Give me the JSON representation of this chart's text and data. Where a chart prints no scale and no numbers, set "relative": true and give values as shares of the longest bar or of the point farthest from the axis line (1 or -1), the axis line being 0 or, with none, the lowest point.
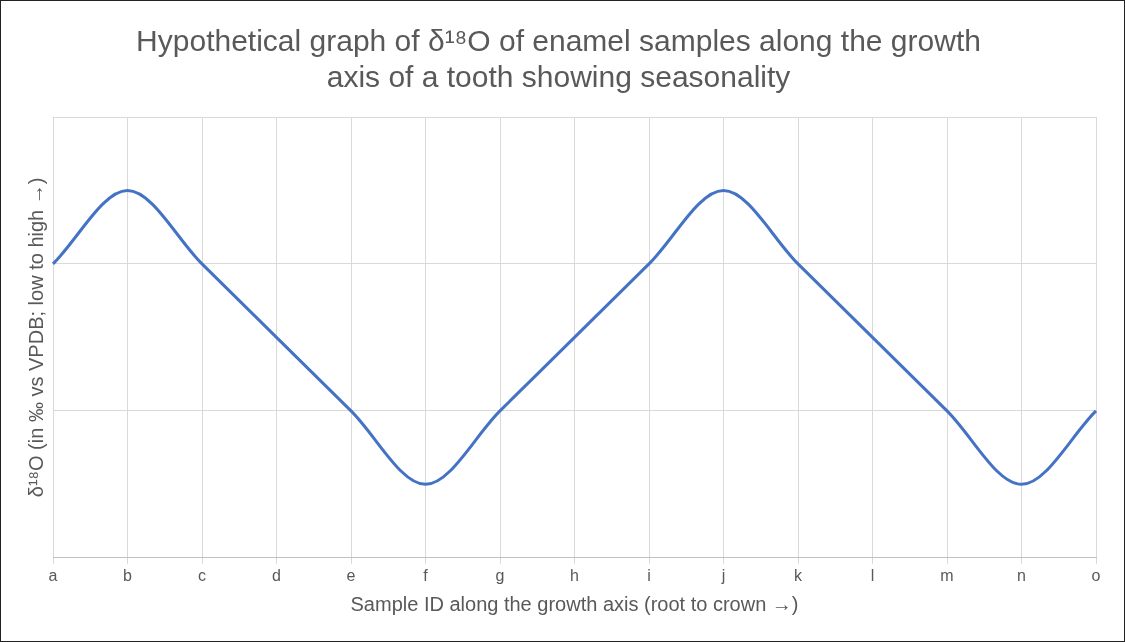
{
  "chart_data": {
    "type": "line",
    "title": "Hypothetical graph of δ¹⁸O of enamel samples along the growth axis of a tooth showing seasonality",
    "xlabel": "Sample ID along the growth axis (root to crown →)",
    "ylabel": "δ¹⁸O (in ‰ vs VPDB; low to high →)",
    "categories": [
      "a",
      "b",
      "c",
      "d",
      "e",
      "f",
      "g",
      "h",
      "i",
      "j",
      "k",
      "l",
      "m",
      "n",
      "o"
    ],
    "series": [
      {
        "color": "#4472c4",
        "values": [
          0.8,
          1,
          0.8,
          0.6,
          0.4,
          0.2,
          0.4,
          0.6,
          0.8,
          1,
          0.8,
          0.6,
          0.4,
          0.2,
          0.4
        ]
      }
    ],
    "relative": true,
    "grid": true,
    "legend": false,
    "marker": "none",
    "line_style": "solid"
  }
}
